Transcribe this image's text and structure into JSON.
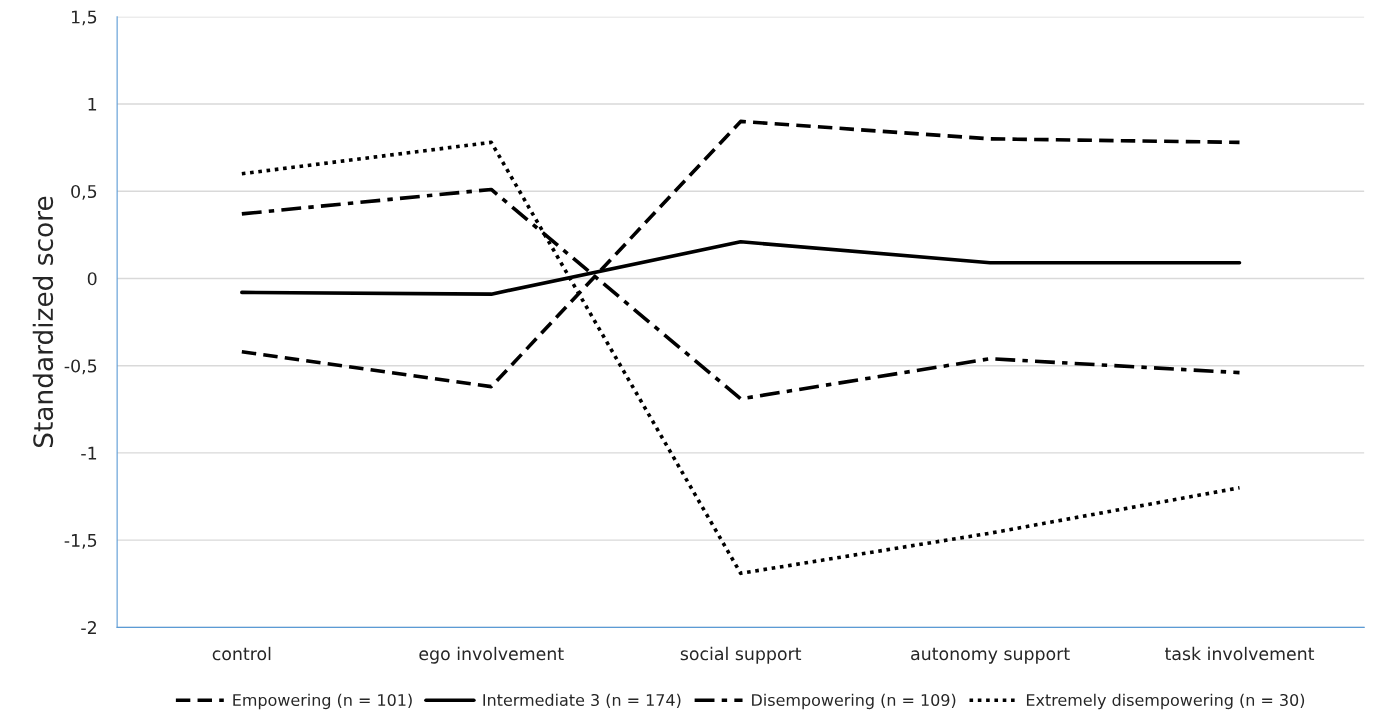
{
  "chart_data": {
    "type": "line",
    "ylabel": "Standardized score",
    "categories": [
      "control",
      "ego involvement",
      "social support",
      "autonomy support",
      "task involvement"
    ],
    "series": [
      {
        "name": "Empowering (n = 101)",
        "color": "#000000",
        "line_style": "dashed",
        "values": [
          -0.42,
          -0.62,
          0.9,
          0.8,
          0.78
        ]
      },
      {
        "name": "Intermediate 3 (n = 174)",
        "color": "#000000",
        "line_style": "solid",
        "values": [
          -0.08,
          -0.09,
          0.21,
          0.09,
          0.09
        ]
      },
      {
        "name": "Disempowering (n = 109)",
        "color": "#000000",
        "line_style": "dashdot",
        "values": [
          0.37,
          0.51,
          -0.69,
          -0.46,
          -0.54
        ]
      },
      {
        "name": "Extremely disempowering (n = 30)",
        "color": "#000000",
        "line_style": "dotted",
        "values": [
          0.6,
          0.78,
          -1.69,
          -1.46,
          -1.2
        ]
      }
    ],
    "ylim": [
      -2,
      1.5
    ],
    "yticks": [
      {
        "value": -2,
        "label": "-2"
      },
      {
        "value": -1.5,
        "label": "-1,5"
      },
      {
        "value": -1,
        "label": "-1"
      },
      {
        "value": -0.5,
        "label": "-0,5"
      },
      {
        "value": 0,
        "label": "0"
      },
      {
        "value": 0.5,
        "label": "0,5"
      },
      {
        "value": 1,
        "label": "1"
      },
      {
        "value": 1.5,
        "label": "1,5"
      }
    ],
    "grid": "y",
    "legend": "bottom",
    "marker": "none"
  }
}
